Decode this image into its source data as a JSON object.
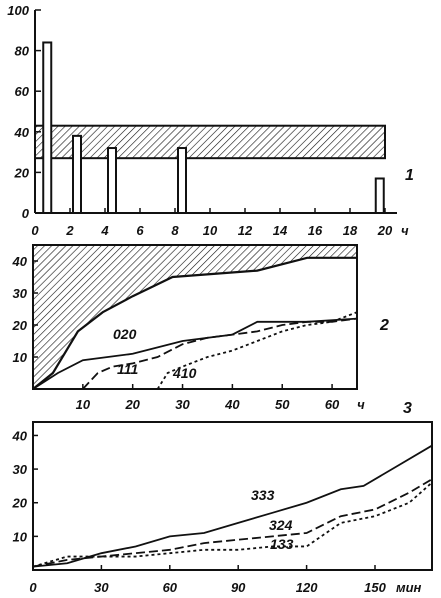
{
  "colors": {
    "ink": "#111111",
    "paper": "#ffffff"
  },
  "chart_data": [
    {
      "type": "bar",
      "panel_label": "1",
      "xlabel": "ч",
      "xlim": [
        0,
        20
      ],
      "ylim": [
        0,
        100
      ],
      "xticks": [
        0,
        2,
        4,
        6,
        8,
        10,
        12,
        14,
        16,
        18,
        20
      ],
      "yticks": [
        0,
        20,
        40,
        60,
        80,
        100
      ],
      "band": [
        27,
        43
      ],
      "bars": [
        {
          "x": 0.7,
          "value": 84
        },
        {
          "x": 2.4,
          "value": 38
        },
        {
          "x": 4.4,
          "value": 32
        },
        {
          "x": 8.4,
          "value": 32
        },
        {
          "x": 19.7,
          "value": 17
        }
      ]
    },
    {
      "type": "line",
      "panel_label": "2",
      "xlabel": "ч",
      "xlim": [
        0,
        65
      ],
      "ylim": [
        0,
        45
      ],
      "xticks": [
        10,
        20,
        30,
        40,
        50,
        60
      ],
      "yticks": [
        10,
        20,
        30,
        40
      ],
      "upper_boundary": [
        [
          0,
          0
        ],
        [
          4,
          5
        ],
        [
          9,
          18
        ],
        [
          14,
          24
        ],
        [
          20,
          29
        ],
        [
          28,
          35
        ],
        [
          45,
          37
        ],
        [
          55,
          41
        ],
        [
          65,
          41
        ]
      ],
      "series": [
        {
          "name": "020",
          "style": "solid",
          "x": [
            0,
            5,
            10,
            20,
            30,
            40,
            45,
            55,
            65
          ],
          "y": [
            0,
            5,
            9,
            11,
            15,
            17,
            21,
            21,
            22
          ]
        },
        {
          "name": "111",
          "style": "dashed",
          "x": [
            10,
            13,
            16,
            20,
            25,
            30,
            35,
            40,
            45,
            50,
            55,
            60,
            65
          ],
          "y": [
            0,
            5,
            7,
            8,
            10,
            14,
            16,
            17,
            18,
            20,
            21,
            21,
            22
          ]
        },
        {
          "name": "410",
          "style": "dotted",
          "x": [
            25,
            27,
            30,
            35,
            40,
            45,
            50,
            55,
            60,
            65
          ],
          "y": [
            0,
            5,
            7,
            10,
            12,
            15,
            18,
            20,
            21,
            24
          ]
        }
      ]
    },
    {
      "type": "line",
      "panel_label": "3",
      "xlabel": "мин",
      "xlim": [
        0,
        175
      ],
      "ylim": [
        0,
        44
      ],
      "xticks": [
        0,
        30,
        60,
        90,
        120,
        150
      ],
      "yticks": [
        10,
        20,
        30,
        40
      ],
      "series": [
        {
          "name": "333",
          "style": "solid",
          "x": [
            0,
            15,
            30,
            45,
            60,
            75,
            90,
            105,
            120,
            135,
            145,
            160,
            175
          ],
          "y": [
            1,
            2,
            5,
            7,
            10,
            11,
            14,
            17,
            20,
            24,
            25,
            31,
            37
          ]
        },
        {
          "name": "324",
          "style": "dashed",
          "x": [
            0,
            15,
            30,
            45,
            60,
            75,
            90,
            105,
            120,
            135,
            150,
            165,
            175
          ],
          "y": [
            1,
            3,
            4,
            5,
            6,
            8,
            9,
            10,
            11,
            16,
            18,
            23,
            27
          ]
        },
        {
          "name": "133",
          "style": "dotted",
          "x": [
            0,
            15,
            30,
            45,
            60,
            75,
            90,
            105,
            120,
            135,
            150,
            165,
            175
          ],
          "y": [
            1,
            4,
            4,
            4,
            5,
            6,
            6,
            7,
            7,
            14,
            16,
            20,
            26
          ]
        }
      ]
    }
  ]
}
